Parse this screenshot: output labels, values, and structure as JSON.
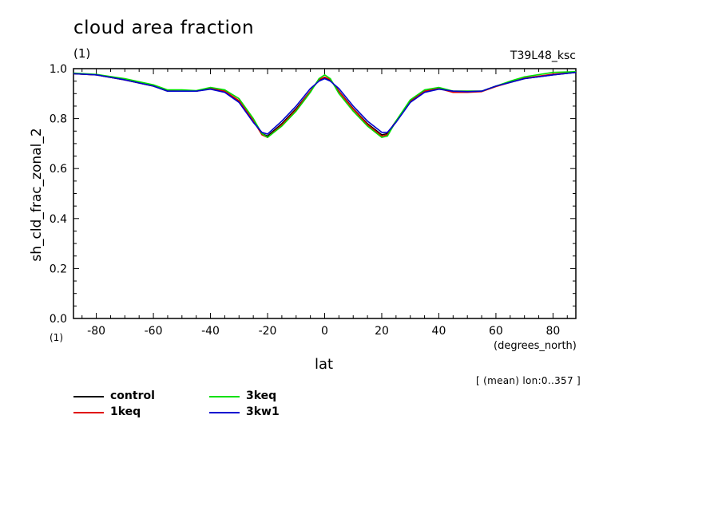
{
  "header": {
    "title": "cloud area fraction",
    "units_top": "(1)",
    "run_name": "T39L48_ksc"
  },
  "footer": {
    "units_bottom": "(1)",
    "x_units": "(degrees_north)",
    "note": "[ (mean) lon:0..357 ]"
  },
  "chart_data": {
    "type": "line",
    "title": "cloud area fraction",
    "xlabel": "lat",
    "ylabel": "sh_cld_frac_zonal_2",
    "xlim": [
      -88,
      88
    ],
    "ylim": [
      0.0,
      1.0
    ],
    "x_ticks": [
      -80,
      -60,
      -40,
      -20,
      0,
      20,
      40,
      60,
      80
    ],
    "x_tick_labels": [
      "-80",
      "-60",
      "-40",
      "-20",
      "0",
      "20",
      "40",
      "60",
      "80"
    ],
    "y_ticks": [
      0.0,
      0.2,
      0.4,
      0.6,
      0.8,
      1.0
    ],
    "y_tick_labels": [
      "0.0",
      "0.2",
      "0.4",
      "0.6",
      "0.8",
      "1.0"
    ],
    "grid": false,
    "legend_position": "bottom-left",
    "x": [
      -88,
      -80,
      -70,
      -60,
      -55,
      -50,
      -45,
      -40,
      -35,
      -30,
      -25,
      -22,
      -20,
      -15,
      -10,
      -5,
      -2,
      0,
      2,
      5,
      10,
      15,
      20,
      22,
      25,
      30,
      35,
      40,
      45,
      50,
      55,
      60,
      65,
      70,
      80,
      88
    ],
    "series": [
      {
        "name": "control",
        "color": "#000000",
        "values": [
          0.98,
          0.975,
          0.955,
          0.93,
          0.91,
          0.91,
          0.91,
          0.92,
          0.91,
          0.87,
          0.79,
          0.74,
          0.73,
          0.78,
          0.84,
          0.91,
          0.955,
          0.965,
          0.955,
          0.91,
          0.84,
          0.78,
          0.735,
          0.74,
          0.79,
          0.87,
          0.91,
          0.92,
          0.91,
          0.91,
          0.91,
          0.93,
          0.945,
          0.96,
          0.975,
          0.985
        ]
      },
      {
        "name": "1keq",
        "color": "#e00000",
        "values": [
          0.98,
          0.975,
          0.955,
          0.93,
          0.912,
          0.91,
          0.91,
          0.922,
          0.91,
          0.872,
          0.792,
          0.735,
          0.725,
          0.775,
          0.835,
          0.91,
          0.957,
          0.966,
          0.957,
          0.908,
          0.838,
          0.776,
          0.73,
          0.735,
          0.788,
          0.868,
          0.91,
          0.92,
          0.905,
          0.905,
          0.908,
          0.928,
          0.945,
          0.962,
          0.978,
          0.985
        ]
      },
      {
        "name": "3keq",
        "color": "#00e000",
        "values": [
          0.982,
          0.977,
          0.96,
          0.935,
          0.915,
          0.915,
          0.912,
          0.925,
          0.915,
          0.88,
          0.8,
          0.74,
          0.725,
          0.77,
          0.83,
          0.905,
          0.96,
          0.975,
          0.96,
          0.9,
          0.83,
          0.77,
          0.725,
          0.73,
          0.79,
          0.875,
          0.915,
          0.925,
          0.91,
          0.91,
          0.91,
          0.93,
          0.95,
          0.967,
          0.985,
          0.988
        ]
      },
      {
        "name": "3kw1",
        "color": "#0000d0",
        "values": [
          0.98,
          0.975,
          0.955,
          0.93,
          0.91,
          0.91,
          0.91,
          0.918,
          0.905,
          0.865,
          0.785,
          0.745,
          0.738,
          0.79,
          0.85,
          0.92,
          0.95,
          0.96,
          0.95,
          0.92,
          0.85,
          0.79,
          0.745,
          0.745,
          0.785,
          0.865,
          0.905,
          0.918,
          0.91,
          0.908,
          0.91,
          0.93,
          0.945,
          0.96,
          0.975,
          0.985
        ]
      }
    ]
  }
}
